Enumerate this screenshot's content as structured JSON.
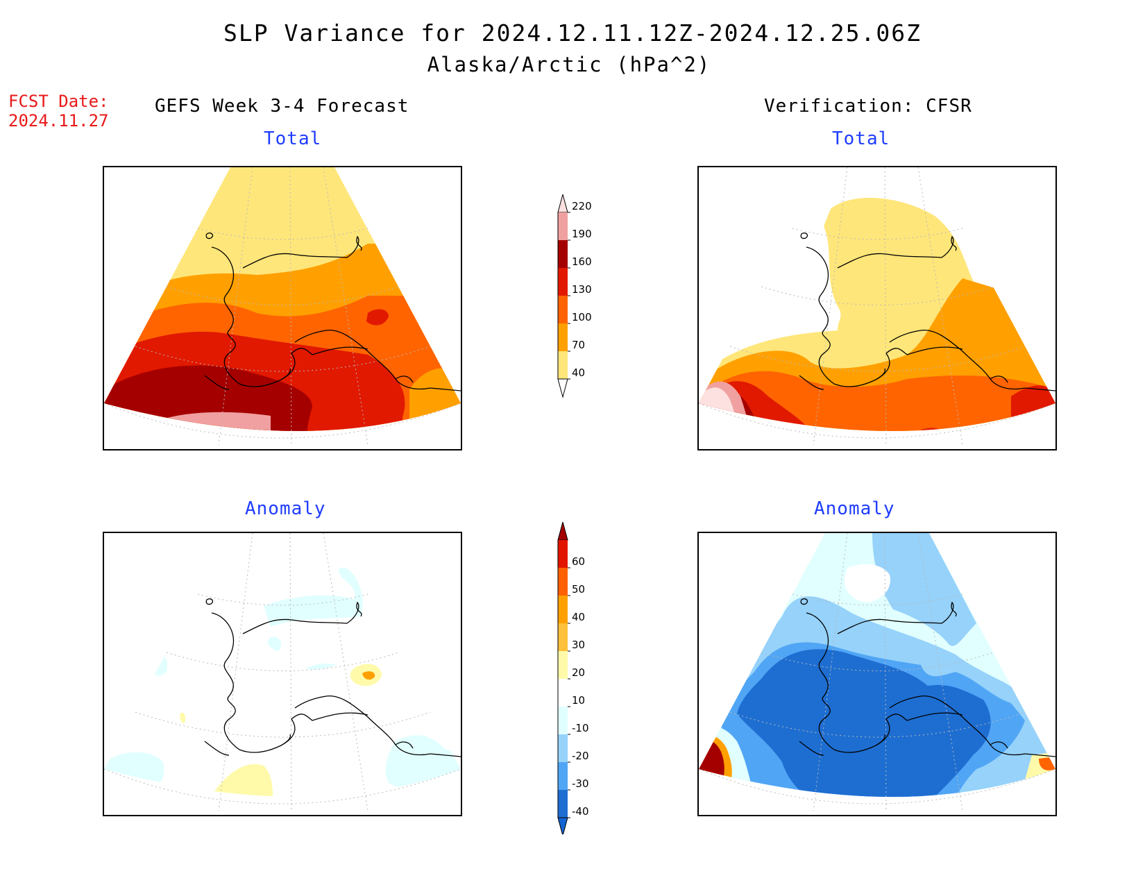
{
  "header": {
    "title": "SLP Variance for 2024.12.11.12Z-2024.12.25.06Z",
    "subtitle": "Alaska/Arctic (hPa^2)"
  },
  "forecast_date": {
    "label": "FCST Date:",
    "value": "2024.11.27"
  },
  "columns": {
    "left_heading": "GEFS Week 3-4 Forecast",
    "right_heading": "Verification: CFSR"
  },
  "panels": {
    "gefs_total_title": "Total",
    "cfsr_total_title": "Total",
    "gefs_anomaly_title": "Anomaly",
    "cfsr_anomaly_title": "Anomaly"
  },
  "colorbars": {
    "total": {
      "levels": [
        "40",
        "70",
        "100",
        "130",
        "160",
        "190",
        "220"
      ],
      "colors": [
        "#ffffff",
        "#ffe67a",
        "#ffa000",
        "#ff6400",
        "#e11900",
        "#a50000",
        "#f0a0a0",
        "#fde0e0"
      ]
    },
    "anomaly": {
      "levels": [
        "-40",
        "-30",
        "-20",
        "-10",
        "10",
        "20",
        "30",
        "40",
        "50",
        "60"
      ],
      "colors": [
        "#1464d2",
        "#1e6ed2",
        "#50a5f5",
        "#96d2fa",
        "#e1ffff",
        "#ffffff",
        "#fffaaa",
        "#ffc03c",
        "#ffa000",
        "#ff6000",
        "#e11400",
        "#a50000"
      ]
    }
  },
  "palette": {
    "white": "#ffffff",
    "lt_yellow": "#ffe67a",
    "orange": "#ffa000",
    "dk_orange": "#ff6400",
    "red": "#e11900",
    "dk_red": "#a50000",
    "pink": "#f0a0a0",
    "lt_pink": "#fde0e0",
    "anom_pale_cyan": "#e1ffff",
    "anom_lt_blue": "#96d2fa",
    "anom_blue": "#50a5f5",
    "anom_dk_blue": "#1e6ed2",
    "anom_pale_yellow": "#fffaaa",
    "anom_orange": "#ffa000"
  }
}
